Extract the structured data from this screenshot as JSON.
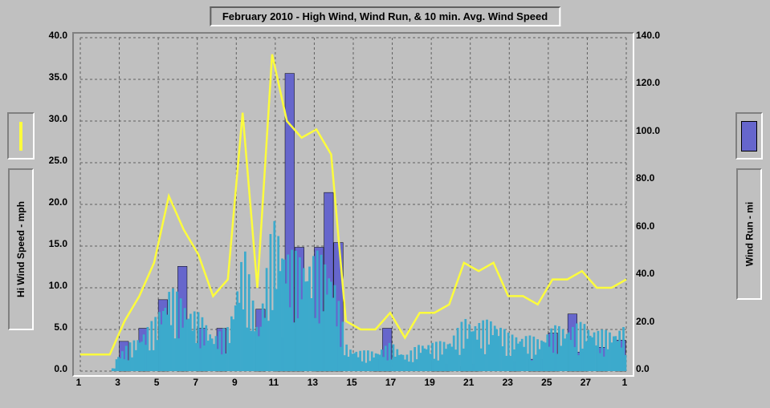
{
  "chart": {
    "type": "combo-bar-line",
    "title": "February 2010 - High Wind, Wind Run, & 10 min. Avg. Wind Speed",
    "background_color": "#c0c0c0",
    "grid_color": "#606060",
    "grid_dash": "3,3",
    "border_light": "#ffffff",
    "border_dark": "#808080",
    "text_color": "#000000",
    "title_fontsize": 13,
    "tick_fontsize": 12,
    "y_left": {
      "label": "Hi Wind Speed - mph",
      "min": 0.0,
      "max": 40.0,
      "step": 5.0,
      "ticks": [
        "0.0",
        "5.0",
        "10.0",
        "15.0",
        "20.0",
        "25.0",
        "30.0",
        "35.0",
        "40.0"
      ]
    },
    "y_right": {
      "label": "Wind Run - mi",
      "min": 0.0,
      "max": 140.0,
      "step": 20.0,
      "ticks": [
        "0.0",
        "20.0",
        "40.0",
        "60.0",
        "80.0",
        "100.0",
        "120.0",
        "140.0"
      ]
    },
    "x": {
      "ticks": [
        "1",
        "3",
        "5",
        "7",
        "9",
        "11",
        "13",
        "15",
        "17",
        "19",
        "21",
        "23",
        "25",
        "27",
        "1"
      ],
      "n_days": 28
    },
    "line_hi_wind": {
      "color": "#fcfc3c",
      "width": 2.5,
      "values": [
        2,
        2,
        2,
        6,
        9,
        13,
        21,
        17,
        14,
        9,
        11,
        31,
        10,
        38,
        30,
        28,
        29,
        26,
        6,
        5,
        5,
        7,
        4,
        7,
        7,
        8,
        13,
        12,
        13,
        9,
        9,
        8,
        11,
        11,
        12,
        10,
        10,
        11
      ]
    },
    "bars_wind_run": {
      "color": "#6666cc",
      "border_color": "#000000",
      "values": [
        0,
        0,
        0,
        0,
        12.5,
        0,
        18,
        0,
        30,
        0,
        44,
        0,
        18,
        0,
        18,
        0,
        0,
        0,
        26,
        0,
        14,
        125,
        52,
        0,
        52,
        75,
        54,
        0,
        0,
        0,
        5,
        18,
        0,
        0,
        0,
        0,
        4,
        3,
        0,
        2,
        3,
        0,
        0,
        0,
        4,
        0,
        5,
        5,
        16,
        0,
        24,
        8,
        0,
        10,
        0,
        13
      ]
    },
    "bars_avg_wind": {
      "color": "#3caacc",
      "values_fine": true,
      "peak": 18
    },
    "legend": {
      "line_color": "#fcfc3c",
      "bar_color": "#6666cc"
    }
  }
}
